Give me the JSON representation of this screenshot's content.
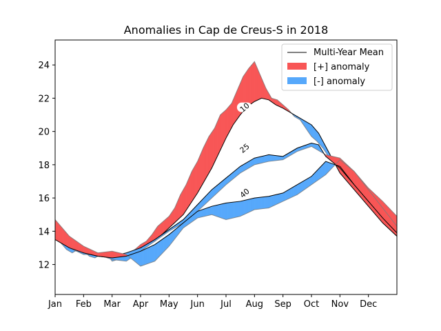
{
  "chart_data": {
    "type": "area",
    "title": "Anomalies in Cap de Creus-S in 2018",
    "xlabel": "",
    "ylabel": "",
    "x_ticks": [
      "Jan",
      "Feb",
      "Mar",
      "Apr",
      "May",
      "Jun",
      "Jul",
      "Aug",
      "Sep",
      "Oct",
      "Nov",
      "Dec"
    ],
    "y_ticks": [
      12,
      14,
      16,
      18,
      20,
      22,
      24
    ],
    "xlim": [
      0,
      12
    ],
    "ylim": [
      10.2,
      25.5
    ],
    "grid": false,
    "legend": {
      "placement": "top-right",
      "entries": [
        {
          "label": "Multi-Year Mean",
          "kind": "line",
          "color": "#000000"
        },
        {
          "label": "[+] anomaly",
          "kind": "patch",
          "color": "#f85656"
        },
        {
          "label": "[-] anomaly",
          "kind": "patch",
          "color": "#56a8fb"
        }
      ]
    },
    "colors": {
      "positive": "#f85656",
      "negative": "#56a8fb",
      "observed": "#7a7a7a",
      "mean": "#000000"
    },
    "depth_labels": [
      {
        "text": "10",
        "x": 6.65,
        "y": 21.45
      },
      {
        "text": "25",
        "x": 6.65,
        "y": 19.0
      },
      {
        "text": "40",
        "x": 6.65,
        "y": 16.3
      }
    ],
    "series": [
      {
        "depth": "10",
        "mean_x": [
          0,
          0.5,
          1,
          1.5,
          2,
          2.5,
          3,
          3.5,
          4,
          4.5,
          5,
          5.5,
          6,
          6.25,
          6.5,
          6.75,
          7,
          7.25,
          7.5,
          7.75,
          8,
          8.5,
          9,
          9.25,
          9.5,
          10,
          10.5,
          11,
          11.5,
          12
        ],
        "mean_y": [
          13.7,
          13.1,
          12.7,
          12.5,
          12.4,
          12.6,
          13.0,
          13.4,
          14.2,
          15.0,
          16.3,
          17.8,
          19.6,
          20.4,
          21.0,
          21.5,
          21.8,
          22.0,
          21.9,
          21.6,
          21.4,
          20.9,
          20.4,
          19.9,
          19.1,
          17.5,
          16.5,
          15.5,
          14.5,
          13.7
        ],
        "obs_x": [
          0,
          0.2,
          0.4,
          0.6,
          0.8,
          1.0,
          1.2,
          1.4,
          1.6,
          1.8,
          2.0,
          2.2,
          2.4,
          2.6,
          2.8,
          3.0,
          3.2,
          3.4,
          3.6,
          3.8,
          4.0,
          4.2,
          4.4,
          4.6,
          4.8,
          5.0,
          5.2,
          5.4,
          5.6,
          5.8,
          6.0,
          6.2,
          6.4,
          6.6,
          6.8,
          7.0,
          7.2,
          7.4,
          7.6,
          7.8,
          8.0,
          8.2,
          8.4,
          8.6,
          8.8,
          9.0,
          9.2,
          9.4,
          9.6,
          9.8,
          10.0,
          10.2,
          10.4,
          10.6,
          10.8,
          11.0,
          11.2,
          11.4,
          11.6,
          11.8,
          12.0
        ],
        "obs_y": [
          13.6,
          13.3,
          12.9,
          12.7,
          12.9,
          12.8,
          12.5,
          12.4,
          12.6,
          12.7,
          12.2,
          12.3,
          12.4,
          12.7,
          12.9,
          13.2,
          13.4,
          13.8,
          14.3,
          14.6,
          14.9,
          15.4,
          16.2,
          16.8,
          17.6,
          18.2,
          19.0,
          19.7,
          20.2,
          21.0,
          21.3,
          21.7,
          22.5,
          23.3,
          23.8,
          24.2,
          23.4,
          22.6,
          22.0,
          21.9,
          21.6,
          21.3,
          20.9,
          20.7,
          20.2,
          19.7,
          19.4,
          19.0,
          18.5,
          18.1,
          17.8,
          17.4,
          17.0,
          16.6,
          16.2,
          15.9,
          15.6,
          15.4,
          15.0,
          14.6,
          14.3
        ]
      },
      {
        "depth": "25",
        "mean_x": [
          0,
          0.5,
          1,
          1.5,
          2,
          2.5,
          3,
          3.5,
          4,
          4.5,
          5,
          5.5,
          6,
          6.5,
          7,
          7.5,
          8,
          8.5,
          9,
          9.25,
          9.5,
          10,
          10.5,
          11,
          11.5,
          12
        ],
        "mean_y": [
          13.6,
          13.1,
          12.7,
          12.5,
          12.5,
          12.7,
          13.0,
          13.5,
          14.1,
          14.7,
          15.6,
          16.5,
          17.2,
          17.9,
          18.4,
          18.6,
          18.5,
          19.0,
          19.3,
          19.2,
          18.5,
          17.8,
          16.8,
          15.8,
          14.9,
          14.2
        ],
        "obs_x": [
          0,
          0.5,
          1,
          1.5,
          2,
          2.5,
          3,
          3.5,
          4,
          4.5,
          5,
          5.5,
          6,
          6.5,
          7,
          7.5,
          8,
          8.5,
          9,
          9.5,
          10,
          10.5,
          11,
          11.5,
          12
        ],
        "obs_y": [
          13.7,
          13.0,
          12.6,
          12.6,
          12.3,
          12.2,
          12.8,
          13.4,
          14.0,
          14.5,
          15.2,
          16.0,
          16.8,
          17.5,
          18.0,
          18.2,
          18.3,
          18.8,
          19.1,
          18.6,
          18.4,
          17.6,
          16.6,
          15.8,
          14.9
        ]
      },
      {
        "depth": "40",
        "mean_x": [
          0,
          0.5,
          1,
          1.5,
          2,
          2.5,
          3,
          3.5,
          4,
          4.5,
          5,
          5.5,
          6,
          6.5,
          7,
          7.5,
          8,
          8.5,
          9,
          9.5,
          10,
          10.5,
          11,
          11.5,
          12
        ],
        "mean_y": [
          13.5,
          13.0,
          12.7,
          12.5,
          12.4,
          12.5,
          12.8,
          13.2,
          13.8,
          14.5,
          15.2,
          15.5,
          15.7,
          15.8,
          16.0,
          16.1,
          16.3,
          16.8,
          17.3,
          18.2,
          17.9,
          16.8,
          15.8,
          14.8,
          13.9
        ],
        "obs_x": [
          0,
          0.5,
          1,
          1.5,
          2,
          2.5,
          3,
          3.5,
          4,
          4.5,
          5,
          5.5,
          6,
          6.5,
          7,
          7.5,
          8,
          8.5,
          9,
          9.5,
          10,
          10.5,
          11,
          11.5,
          12
        ],
        "obs_y": [
          14.7,
          13.7,
          13.1,
          12.7,
          12.8,
          12.6,
          11.9,
          12.2,
          13.1,
          14.2,
          14.8,
          15.0,
          14.7,
          14.9,
          15.3,
          15.4,
          15.8,
          16.2,
          16.8,
          17.4,
          18.3,
          17.6,
          16.5,
          15.4,
          14.3
        ]
      }
    ]
  }
}
